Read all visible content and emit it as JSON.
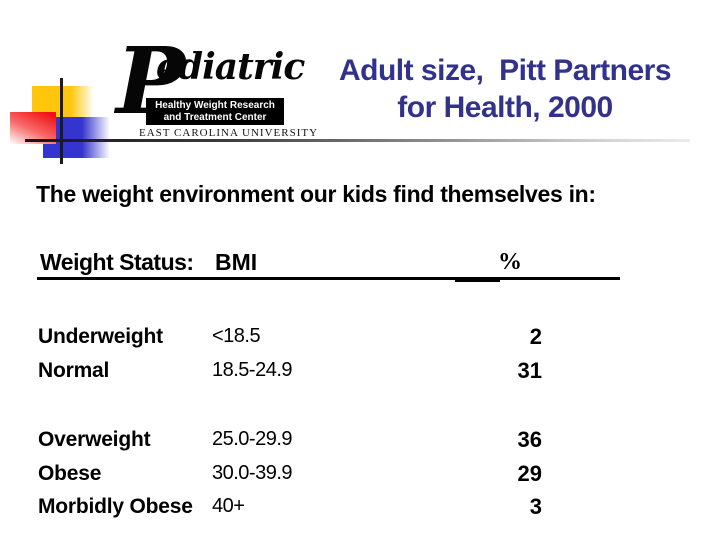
{
  "slide": {
    "title": {
      "lines": [
        "Adult size,  Pitt Partners",
        "for Health, 2000"
      ]
    },
    "intro": "The weight environment our kids find themselves in:",
    "logo": {
      "script_initial": "P",
      "script_rest": "ediatric",
      "box_line1": "Healthy Weight Research",
      "box_line2": "and Treatment Center",
      "university": "EAST CAROLINA UNIVERSITY"
    },
    "table": {
      "headers": {
        "status": "Weight Status:",
        "bmi": "BMI",
        "pct": "%"
      },
      "rows": [
        {
          "status": "Underweight",
          "bmi": "<18.5",
          "pct": "2"
        },
        {
          "status": "Normal",
          "bmi": "18.5-24.9",
          "pct": "31"
        },
        {
          "status": "Overweight",
          "bmi": "25.0-29.9",
          "pct": "36"
        },
        {
          "status": "Obese",
          "bmi": "30.0-39.9",
          "pct": "29"
        },
        {
          "status": "Morbidly Obese",
          "bmi": "40+",
          "pct": "3"
        }
      ]
    },
    "colors": {
      "title_text": "#32328C",
      "accent_yellow": "#FFC60B",
      "accent_red": "#EF1111",
      "accent_blue": "#3434CE",
      "body_text": "#000000"
    }
  }
}
